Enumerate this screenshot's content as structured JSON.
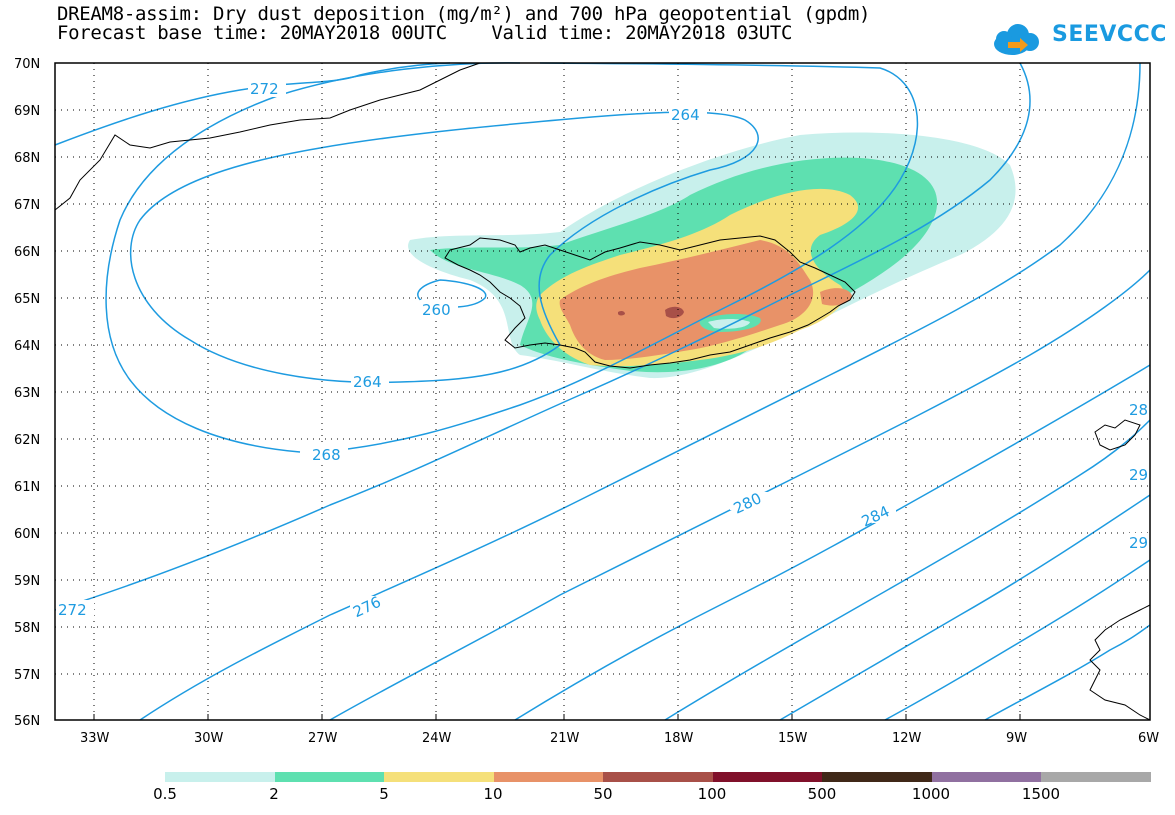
{
  "title": {
    "line1": "DREAM8-assim: Dry dust deposition (mg/m²) and 700 hPa geopotential (gpdm)",
    "line2": "Forecast base time: 20MAY2018 00UTC    Valid time: 20MAY2018 03UTC"
  },
  "logo": {
    "text": "SEEVCCC",
    "icon": "cloud-arrow-icon",
    "color": "#1a9ae0"
  },
  "map": {
    "lat_labels": [
      "70N",
      "69N",
      "68N",
      "67N",
      "66N",
      "65N",
      "64N",
      "63N",
      "62N",
      "61N",
      "60N",
      "59N",
      "58N",
      "57N",
      "56N"
    ],
    "lon_labels": [
      "33W",
      "30W",
      "27W",
      "24W",
      "21W",
      "18W",
      "15W",
      "12W",
      "9W",
      "6W"
    ],
    "contour_labels": [
      "272",
      "264",
      "260",
      "264",
      "268",
      "272",
      "276",
      "280",
      "284",
      "28",
      "29",
      "29"
    ],
    "contour_color": "#1e9be0",
    "coast_color": "#000000"
  },
  "legend": {
    "colors": [
      "#c8f0ec",
      "#5ee0b0",
      "#f5e07a",
      "#e89268",
      "#a85048",
      "#80102a",
      "#402818",
      "#9070a0",
      "#a8a8a8"
    ],
    "labels": [
      "0.5",
      "2",
      "5",
      "10",
      "50",
      "100",
      "500",
      "1000",
      "1500"
    ]
  }
}
